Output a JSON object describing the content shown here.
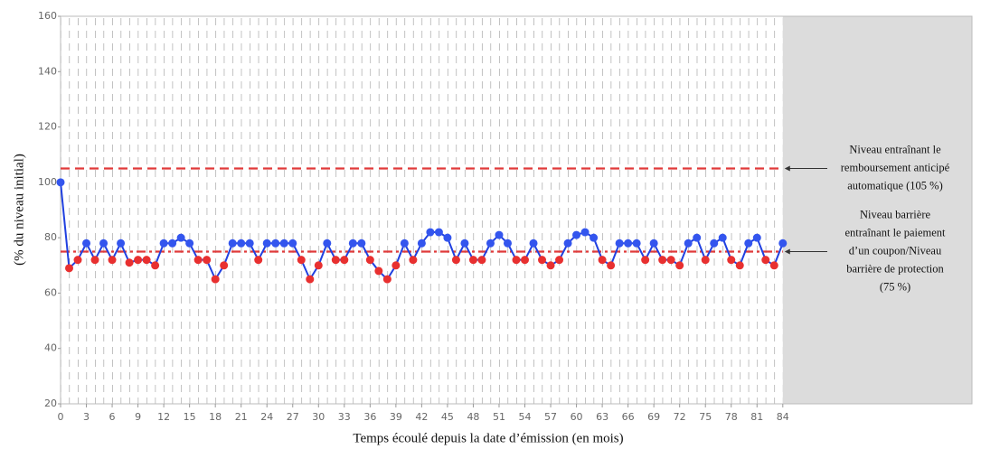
{
  "chart_data": {
    "type": "line",
    "x_label": "Temps écoulé depuis la date d’émission (en mois)",
    "y_label": "(% du niveau initial)",
    "x": [
      0,
      1,
      2,
      3,
      4,
      5,
      6,
      7,
      8,
      9,
      10,
      11,
      12,
      13,
      14,
      15,
      16,
      17,
      18,
      19,
      20,
      21,
      22,
      23,
      24,
      25,
      26,
      27,
      28,
      29,
      30,
      31,
      32,
      33,
      34,
      35,
      36,
      37,
      38,
      39,
      40,
      41,
      42,
      43,
      44,
      45,
      46,
      47,
      48,
      49,
      50,
      51,
      52,
      53,
      54,
      55,
      56,
      57,
      58,
      59,
      60,
      61,
      62,
      63,
      64,
      65,
      66,
      67,
      68,
      69,
      70,
      71,
      72,
      73,
      74,
      75,
      76,
      77,
      78,
      79,
      80,
      81,
      82,
      83,
      84
    ],
    "series": [
      {
        "color": "#2040e0",
        "color_above": "#3355ee",
        "color_below": "#e83030",
        "values": [
          100,
          69,
          72,
          78,
          72,
          78,
          72,
          78,
          71,
          72,
          72,
          70,
          78,
          78,
          80,
          78,
          72,
          72,
          65,
          70,
          78,
          78,
          78,
          72,
          78,
          78,
          78,
          78,
          72,
          65,
          70,
          78,
          72,
          72,
          78,
          78,
          72,
          68,
          65,
          70,
          78,
          72,
          78,
          82,
          82,
          80,
          72,
          78,
          72,
          72,
          78,
          81,
          78,
          72,
          72,
          78,
          72,
          70,
          72,
          78,
          81,
          82,
          80,
          72,
          70,
          78,
          78,
          78,
          72,
          78,
          72,
          72,
          70,
          78,
          80,
          72,
          78,
          80,
          72,
          70,
          78,
          80,
          72,
          70,
          78
        ]
      }
    ],
    "xlim": [
      0,
      106
    ],
    "ylim": [
      20,
      160
    ],
    "xticks": [
      0,
      3,
      6,
      9,
      12,
      15,
      18,
      21,
      24,
      27,
      30,
      33,
      36,
      39,
      42,
      45,
      48,
      51,
      54,
      57,
      60,
      63,
      66,
      69,
      72,
      75,
      78,
      81,
      84
    ],
    "yticks": [
      20,
      40,
      60,
      80,
      100,
      120,
      140,
      160
    ],
    "shaded_from": 84,
    "shade_color": "#dcdcdc",
    "reference_lines": [
      {
        "value": 105,
        "color": "#e03a3a",
        "style": "dashed",
        "label": [
          "Niveau entraînant le",
          "remboursement anticipé",
          "automatique (105 %)"
        ]
      },
      {
        "value": 75,
        "color": "#e03a3a",
        "style": "dashdot",
        "label": [
          "Niveau barrière",
          "entraînant le paiement",
          "d’un coupon/Niveau",
          "barrière de protection",
          "(75 %)"
        ]
      }
    ]
  }
}
